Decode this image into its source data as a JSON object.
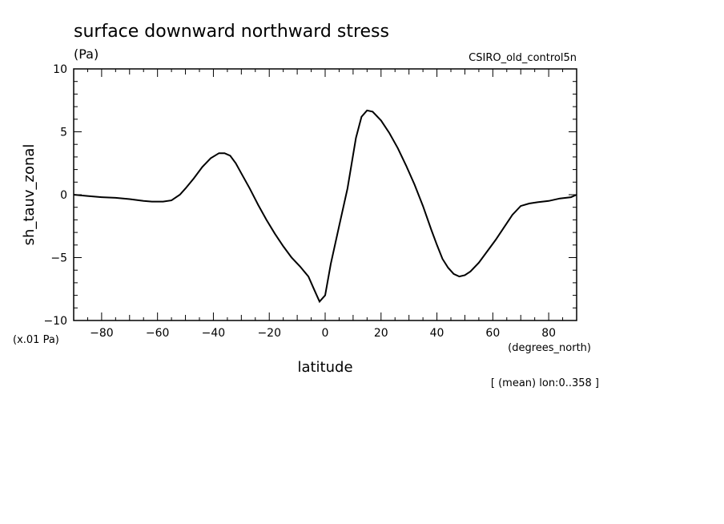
{
  "chart_data": {
    "type": "line",
    "title": "surface downward northward stress",
    "units": "(Pa)",
    "dataset": "CSIRO_old_control5n",
    "xlabel": "latitude",
    "xunits": "(degrees_north)",
    "ylabel": "sh_tauv_zonal",
    "yscale_note": "(x.01 Pa)",
    "footnote": "[ (mean) lon:0..358 ]",
    "xlim": [
      -90,
      90
    ],
    "ylim": [
      -10,
      10
    ],
    "xticks": [
      "−80",
      "−60",
      "−40",
      "−20",
      "0",
      "20",
      "40",
      "60",
      "80"
    ],
    "xtick_values": [
      -80,
      -60,
      -40,
      -20,
      0,
      20,
      40,
      60,
      80
    ],
    "yticks": [
      "10",
      "5",
      "0",
      "−5",
      "−10"
    ],
    "ytick_values": [
      10,
      5,
      0,
      -5,
      -10
    ],
    "grid": false,
    "series": [
      {
        "x": [
          -90,
          -85,
          -80,
          -75,
          -70,
          -65,
          -62,
          -58,
          -55,
          -52,
          -50,
          -47,
          -44,
          -41,
          -38,
          -36,
          -34,
          -32,
          -30,
          -27,
          -24,
          -21,
          -18,
          -15,
          -12,
          -9,
          -6,
          -4,
          -2,
          0,
          2,
          5,
          8,
          11,
          13,
          15,
          17,
          20,
          23,
          26,
          29,
          32,
          35,
          38,
          40,
          42,
          44,
          46,
          48,
          50,
          52,
          55,
          58,
          61,
          64,
          67,
          70,
          73,
          76,
          80,
          84,
          88,
          90
        ],
        "y": [
          0,
          -0.1,
          -0.2,
          -0.25,
          -0.35,
          -0.5,
          -0.55,
          -0.55,
          -0.45,
          0,
          0.5,
          1.3,
          2.2,
          2.9,
          3.3,
          3.3,
          3.1,
          2.5,
          1.7,
          0.5,
          -0.8,
          -2.0,
          -3.1,
          -4.1,
          -5.0,
          -5.7,
          -6.5,
          -7.5,
          -8.5,
          -8.0,
          -5.5,
          -2.5,
          0.5,
          4.5,
          6.2,
          6.7,
          6.6,
          5.9,
          4.9,
          3.7,
          2.3,
          0.8,
          -0.9,
          -2.8,
          -4.0,
          -5.1,
          -5.8,
          -6.3,
          -6.5,
          -6.4,
          -6.1,
          -5.4,
          -4.5,
          -3.6,
          -2.6,
          -1.6,
          -0.9,
          -0.7,
          -0.6,
          -0.5,
          -0.3,
          -0.2,
          0
        ]
      }
    ]
  }
}
